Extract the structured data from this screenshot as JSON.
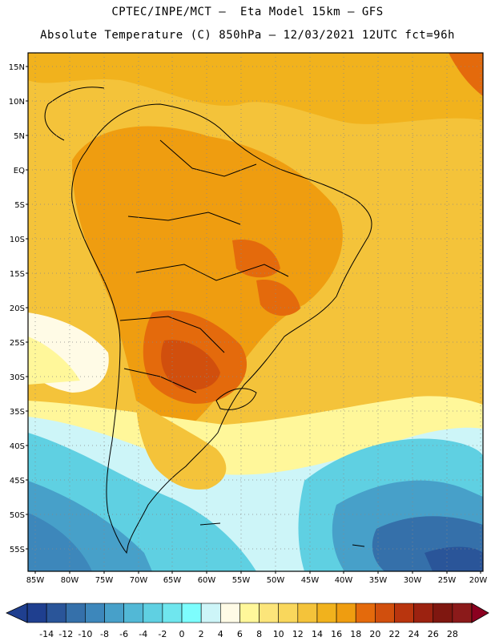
{
  "header": {
    "line1": "CPTEC/INPE/MCT –  Eta Model 15km – GFS",
    "line2": "Absolute Temperature (C) 850hPa – 12/03/2021 12UTC fct=96h"
  },
  "map": {
    "lat_labels": [
      "15N",
      "10N",
      "5N",
      "EQ",
      "5S",
      "10S",
      "15S",
      "20S",
      "25S",
      "30S",
      "35S",
      "40S",
      "45S",
      "50S",
      "55S"
    ],
    "lon_labels": [
      "85W",
      "80W",
      "75W",
      "70W",
      "65W",
      "60W",
      "55W",
      "50W",
      "45W",
      "40W",
      "35W",
      "30W",
      "25W",
      "20W"
    ]
  },
  "legend": {
    "colors": [
      "#1f3f8f",
      "#2a5599",
      "#3570aa",
      "#3d87bb",
      "#47a0c9",
      "#52b8d6",
      "#5fd0e2",
      "#6fe6ee",
      "#7dfdfd",
      "#cdf5f8",
      "#fffbe6",
      "#fff79a",
      "#fce57a",
      "#f9d75c",
      "#f4c33a",
      "#f1b21d",
      "#ef9d10",
      "#e46a0c",
      "#d14f0d",
      "#b9350e",
      "#9c2210",
      "#7f1710",
      "#8b1a1a"
    ],
    "left_arrow_color": "#1f3f8f",
    "right_arrow_color": "#8b0020",
    "tick_labels": [
      "-14",
      "-12",
      "-10",
      "-8",
      "-6",
      "-4",
      "-2",
      "0",
      "2",
      "4",
      "6",
      "8",
      "10",
      "12",
      "14",
      "16",
      "18",
      "20",
      "22",
      "24",
      "26",
      "28"
    ]
  }
}
